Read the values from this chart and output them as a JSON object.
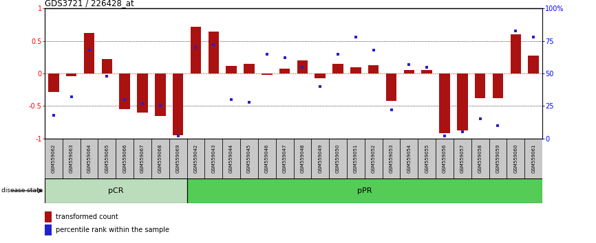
{
  "title": "GDS3721 / 226428_at",
  "samples": [
    "GSM559062",
    "GSM559063",
    "GSM559064",
    "GSM559065",
    "GSM559066",
    "GSM559067",
    "GSM559068",
    "GSM559069",
    "GSM559042",
    "GSM559043",
    "GSM559044",
    "GSM559045",
    "GSM559046",
    "GSM559047",
    "GSM559048",
    "GSM559049",
    "GSM559050",
    "GSM559051",
    "GSM559052",
    "GSM559053",
    "GSM559054",
    "GSM559055",
    "GSM559056",
    "GSM559057",
    "GSM559058",
    "GSM559059",
    "GSM559060",
    "GSM559061"
  ],
  "transformed_count": [
    -0.28,
    -0.04,
    0.62,
    0.22,
    -0.55,
    -0.6,
    -0.65,
    -0.95,
    0.72,
    0.65,
    0.12,
    0.15,
    -0.02,
    0.07,
    0.2,
    -0.07,
    0.15,
    0.1,
    0.13,
    -0.42,
    0.05,
    0.05,
    -0.92,
    -0.88,
    -0.38,
    -0.38,
    0.6,
    0.28
  ],
  "percentile_rank": [
    18,
    32,
    68,
    48,
    30,
    27,
    25,
    2,
    70,
    72,
    30,
    28,
    65,
    62,
    55,
    40,
    65,
    78,
    68,
    22,
    57,
    55,
    2,
    5,
    15,
    10,
    83,
    78
  ],
  "pCR_count": 8,
  "pPR_count": 20,
  "bar_color": "#AA1111",
  "dot_color": "#2222CC",
  "bg_color": "#FFFFFF",
  "pCR_color": "#BBDDBB",
  "pPR_color": "#55CC55",
  "label_box_color": "#C8C8C8",
  "ylim": [
    -1.0,
    1.0
  ],
  "y2lim": [
    0,
    100
  ],
  "yticks_left": [
    -1,
    -0.5,
    0,
    0.5,
    1
  ],
  "ytick_labels_left": [
    "-1",
    "-0.5",
    "0",
    "0.5",
    "1"
  ],
  "yticks_right": [
    0,
    25,
    50,
    75,
    100
  ],
  "ytick_labels_right": [
    "0",
    "25",
    "50",
    "75",
    "100%"
  ],
  "hlines_dotted": [
    -0.5,
    0.5
  ],
  "hline_red": 0.0,
  "disease_state_label": "disease state",
  "pCR_label": "pCR",
  "pPR_label": "pPR",
  "legend_bar_label": "transformed count",
  "legend_dot_label": "percentile rank within the sample"
}
